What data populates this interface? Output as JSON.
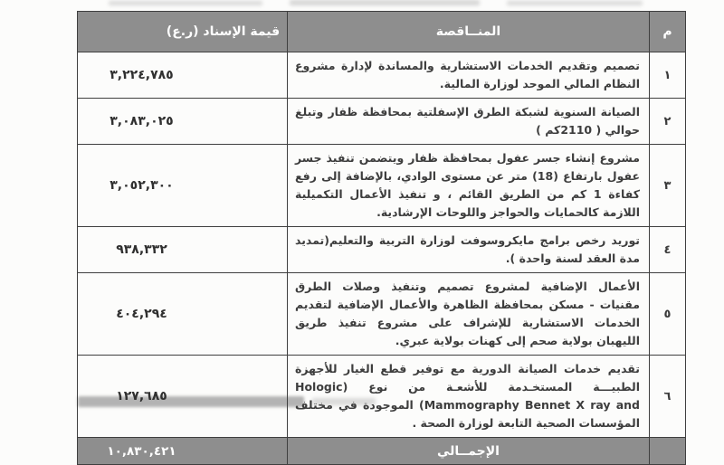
{
  "table": {
    "header": {
      "no": "م",
      "tender": "المنــاقصة",
      "value": "قيمة الإسناد (ر.ع)"
    },
    "rows": [
      {
        "no": "١",
        "tender": "تصميم وتقديم الخدمات الاستشارية والمساندة لإدارة مشروع النظام المالي الموحد لوزارة المالية.",
        "value": "٣,٢٢٤,٧٨٥"
      },
      {
        "no": "٢",
        "tender": "الصيانة السنوية لشبكة الطرق الإسفلتية بمحافظة ظفار وتبلغ حوالي ( 2110كم )",
        "value": "٣,٠٨٣,٠٢٥"
      },
      {
        "no": "٣",
        "tender": "مشروع إنشاء جسر عفول بمحافظة ظفار ويتضمن تنفيذ جسر عفول بارتفاع (18) متر عن مستوى الوادي، بالإضافة إلى رفع كفاءة 1 كم من الطريق القائم ، و تنفيذ الأعمال التكميلية اللازمة كالحمايات والحواجز واللوحات الإرشادية.",
        "value": "٣,٠٥٢,٣٠٠"
      },
      {
        "no": "٤",
        "tender": "توريد رخص برامج مايكروسوفت لوزارة التربية والتعليم(تمديد مدة العقد لسنة واحدة ).",
        "value": "٩٣٨,٣٣٢"
      },
      {
        "no": "٥",
        "tender": "الأعمال الإضافية لمشروع تصميم وتنفيذ وصلات الطرق مقنيات - مسكن  بمحافظة الظاهرة والأعمال الإضافية لتقديم الخدمات الاستشارية للإشراف على مشروع تنفيذ طريق الليهبان بولاية صحم إلى كهنات بولاية عبري.",
        "value": "٤٠٤,٢٩٤"
      },
      {
        "no": "٦",
        "tender": "تقديم خدمات الصيانة الدورية مع توفير قطع الغيار للأجهزة الطبيـــة المستخـدمة للأشعـة من نوع (Hologic Mammography Bennet X ray and) الموجودة في مختلف المؤسسات الصحية التابعة لوزارة الصحة .",
        "value": "١٢٧,٦٨٥"
      }
    ],
    "total": {
      "label": "الإجمــالي",
      "value": "١٠,٨٣٠,٤٢١"
    }
  },
  "colors": {
    "header_bg": "#8e8e8e",
    "header_text": "#ffffff",
    "body_text": "#3d3d3d",
    "border": "#3f3f3f"
  }
}
